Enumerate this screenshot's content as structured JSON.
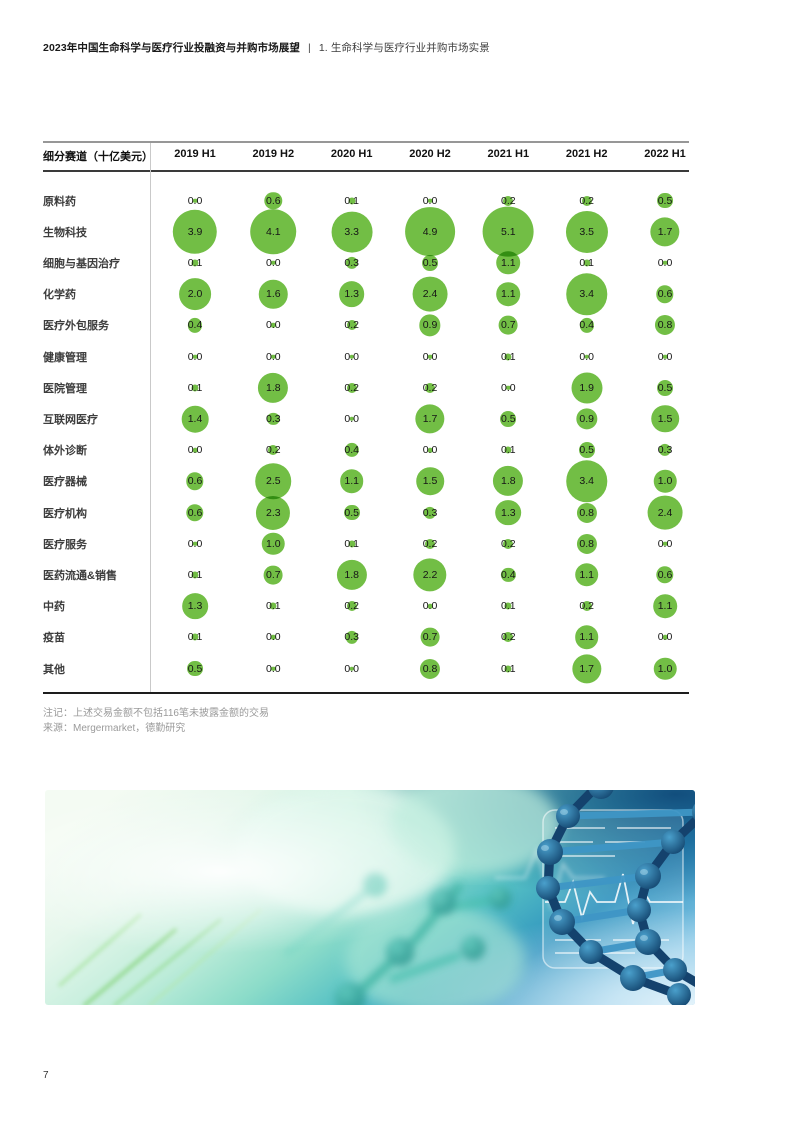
{
  "page": {
    "header": {
      "title": "2023年中国生命科学与医疗行业投融资与并购市场展望",
      "separator": "|",
      "section": "1. 生命科学与医疗行业并购市场实景"
    },
    "page_number": "7"
  },
  "chart_data": {
    "type": "table",
    "variant": "bubble-matrix",
    "title_column": "细分赛道（十亿美元）",
    "unit": "十亿美元",
    "bubble_color": "#72BE45",
    "columns": [
      "2019 H1",
      "2019 H2",
      "2020 H1",
      "2020 H2",
      "2021 H1",
      "2021 H2",
      "2022 H1"
    ],
    "rows": [
      {
        "label": "原料药",
        "values": [
          0.0,
          0.6,
          0.1,
          0.0,
          0.2,
          0.2,
          0.5
        ]
      },
      {
        "label": "生物科技",
        "values": [
          3.9,
          4.1,
          3.3,
          4.9,
          5.1,
          3.5,
          1.7
        ]
      },
      {
        "label": "细胞与基因治疗",
        "values": [
          0.1,
          0.0,
          0.3,
          0.5,
          1.1,
          0.1,
          0.0
        ]
      },
      {
        "label": "化学药",
        "values": [
          2.0,
          1.6,
          1.3,
          2.4,
          1.1,
          3.4,
          0.6
        ]
      },
      {
        "label": "医疗外包服务",
        "values": [
          0.4,
          0.0,
          0.2,
          0.9,
          0.7,
          0.4,
          0.8
        ]
      },
      {
        "label": "健康管理",
        "values": [
          0.0,
          0.0,
          0.0,
          0.0,
          0.1,
          0.0,
          0.0
        ]
      },
      {
        "label": "医院管理",
        "values": [
          0.1,
          1.8,
          0.2,
          0.2,
          0.0,
          1.9,
          0.5
        ]
      },
      {
        "label": "互联网医疗",
        "values": [
          1.4,
          0.3,
          0.0,
          1.7,
          0.5,
          0.9,
          1.5
        ]
      },
      {
        "label": "体外诊断",
        "values": [
          0.0,
          0.2,
          0.4,
          0.0,
          0.1,
          0.5,
          0.3
        ]
      },
      {
        "label": "医疗器械",
        "values": [
          0.6,
          2.5,
          1.1,
          1.5,
          1.8,
          3.4,
          1.0
        ]
      },
      {
        "label": "医疗机构",
        "values": [
          0.6,
          2.3,
          0.5,
          0.3,
          1.3,
          0.8,
          2.4
        ]
      },
      {
        "label": "医疗服务",
        "values": [
          0.0,
          1.0,
          0.1,
          0.2,
          0.2,
          0.8,
          0.0
        ]
      },
      {
        "label": "医药流通&销售",
        "values": [
          0.1,
          0.7,
          1.8,
          2.2,
          0.4,
          1.1,
          0.6
        ]
      },
      {
        "label": "中药",
        "values": [
          1.3,
          0.1,
          0.2,
          0.0,
          0.1,
          0.2,
          1.1
        ]
      },
      {
        "label": "疫苗",
        "values": [
          0.1,
          0.0,
          0.3,
          0.7,
          0.2,
          1.1,
          0.0
        ]
      },
      {
        "label": "其他",
        "values": [
          0.5,
          0.0,
          0.0,
          0.8,
          0.1,
          1.7,
          1.0
        ]
      }
    ]
  },
  "notes": {
    "note": "注记：上述交易金额不包括116笔未披露金额的交易",
    "source": "来源：Mergermarket，德勤研究"
  }
}
